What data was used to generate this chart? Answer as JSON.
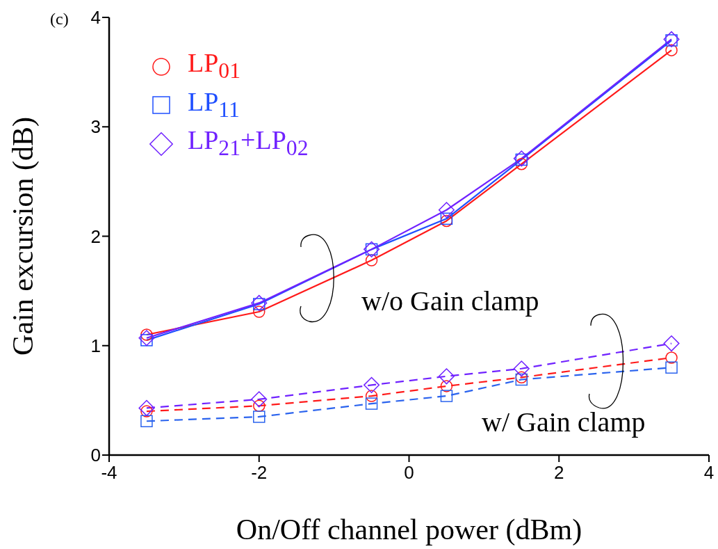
{
  "chart_data": {
    "type": "line",
    "xlabel": "On/Off channel power (dBm)",
    "ylabel": "Gain excursion (dB)",
    "x": [
      -3.5,
      -2,
      -0.5,
      0.5,
      1.5,
      3.5
    ],
    "series": [
      {
        "name": "LP$_{01}$",
        "color": "#ff1a1a",
        "marker": "circle",
        "line_style": "solid",
        "values": [
          1.1,
          1.31,
          1.78,
          2.14,
          2.66,
          3.7
        ]
      },
      {
        "name": "LP$_{11}$",
        "color": "#1f4fff",
        "marker": "square",
        "line_style": "solid",
        "values": [
          1.05,
          1.38,
          1.88,
          2.16,
          2.7,
          3.79
        ]
      },
      {
        "name": "LP$_{21}$+LP$_{02}$",
        "color": "#7022ff",
        "marker": "diamond",
        "line_style": "solid",
        "values": [
          1.07,
          1.39,
          1.88,
          2.24,
          2.71,
          3.8
        ]
      },
      {
        "color": "#ff1a1a",
        "marker": "circle",
        "line_style": "dashed",
        "values": [
          0.4,
          0.45,
          0.54,
          0.63,
          0.71,
          0.89
        ]
      },
      {
        "color": "#2a63ee",
        "marker": "square",
        "line_style": "dashed",
        "values": [
          0.31,
          0.35,
          0.47,
          0.54,
          0.69,
          0.8
        ]
      },
      {
        "color": "#7022ff",
        "marker": "diamond",
        "line_style": "dashed",
        "values": [
          0.43,
          0.51,
          0.64,
          0.72,
          0.79,
          1.02
        ]
      }
    ],
    "xlim": [
      -4,
      4
    ],
    "xticks": [
      -4,
      -2,
      0,
      2,
      4
    ],
    "ylim": [
      0,
      4
    ],
    "yticks": [
      0,
      1,
      2,
      3,
      4
    ],
    "grid": false,
    "legend": "top left",
    "annotations": [
      "(c)",
      "w/o Gain clamp",
      "w/ Gain clamp"
    ]
  }
}
